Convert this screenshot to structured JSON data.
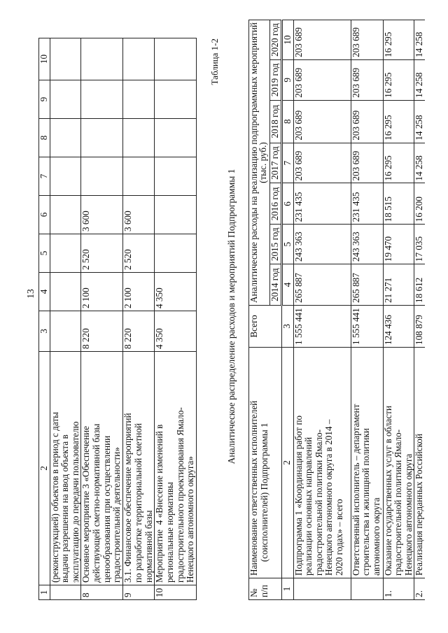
{
  "page_number": "13",
  "top_table": {
    "header": [
      "1",
      "2",
      "3",
      "4",
      "5",
      "6",
      "7",
      "8",
      "9",
      "10"
    ],
    "rows": [
      {
        "num": "",
        "name": "(реконструкцией) объектов в период с даты\nвыдачи разрешения на ввод объекта в\nэксплуатацию до передачи пользователю",
        "values": [
          "",
          "",
          "",
          "",
          "",
          "",
          "",
          ""
        ]
      },
      {
        "num": "8",
        "name": "Основное мероприятие 3 «Обеспечение\nдействующей сметно-нормативной базы\nценообразования при осуществлении\nградостроительной деятельности»",
        "values": [
          "8 220",
          "2 100",
          "2 520",
          "3 600",
          "",
          "",
          "",
          ""
        ]
      },
      {
        "num": "9",
        "name": "3.1. Финансовое обеспечение мероприятий\nпо разработке территориальной сметной\nнормативной базы",
        "values": [
          "8 220",
          "2 100",
          "2 520",
          "3 600",
          "",
          "",
          "",
          ""
        ]
      },
      {
        "num": "10",
        "name": "Мероприятие  4 «Внесение изменений в\nрегиональные нормативы\nградостроительного проектирования Ямало-\nНенецкого автономного округа»",
        "values": [
          "4 350",
          "4 350",
          "",
          "",
          "",
          "",
          "",
          ""
        ]
      }
    ]
  },
  "table_label": "Таблица 1-2",
  "title": "Аналитическое распределение расходов и мероприятий Подпрограммы 1",
  "bottom_table": {
    "col_num": "№\nп/п",
    "col_name": "Наименование ответственных исполнителей\n      (соисполнителей) Подпрограммы 1",
    "col_total": "Всего",
    "group_header": "Аналитические расходы на реализацию подпрограммных мероприятий\n(тыс. руб.)",
    "years": [
      "2014 год",
      "2015 год",
      "2016 год",
      "2017 год",
      "2018 год",
      "2019 год",
      "2020 год"
    ],
    "numbers": [
      "1",
      "2",
      "3",
      "4",
      "5",
      "6",
      "7",
      "8",
      "9",
      "10"
    ],
    "rows": [
      {
        "num": "",
        "name": "Подпрограмма 1 «Координация работ по\nреализации основных направлений\nградостроительной политики Ямало-\nНенецкого автономного округа в 2014 –\n2020 годах» – всего",
        "values": [
          "1 555 441",
          "265 887",
          "243 363",
          "231 435",
          "203 689",
          "203 689",
          "203 689",
          "203 689"
        ]
      },
      {
        "num": "",
        "name": "Ответственный исполнитель – департамент\nстроительства и жилищной политики\nавтономного округа",
        "values": [
          "1 555 441",
          "265 887",
          "243 363",
          "231 435",
          "203 689",
          "203 689",
          "203 689",
          "203 689"
        ]
      },
      {
        "num": "1.",
        "name": "Оказание государственных услуг в области\nградостроительной политики Ямало-\nНенецкого автономного округа",
        "values": [
          "124 436",
          "21 271",
          "19 470",
          "18 515",
          "16 295",
          "16 295",
          "16 295",
          "16 295"
        ]
      },
      {
        "num": "2.",
        "name": "Реализация переданных Российской",
        "values": [
          "108 879",
          "18 612",
          "17 035",
          "16 200",
          "14 258",
          "14 258",
          "14 258",
          "14 258"
        ]
      }
    ]
  }
}
